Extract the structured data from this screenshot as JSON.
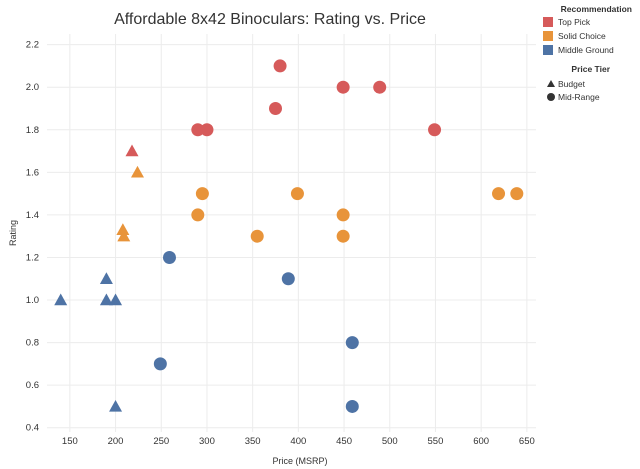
{
  "chart_data": {
    "type": "scatter",
    "title": "Affordable 8x42 Binoculars: Rating vs. Price",
    "xlabel": "Price (MSRP)",
    "ylabel": "Rating",
    "xlim": [
      125,
      660
    ],
    "ylim": [
      0.38,
      2.25
    ],
    "xticks": [
      150,
      200,
      250,
      300,
      350,
      400,
      450,
      500,
      550,
      600,
      650
    ],
    "yticks": [
      0.4,
      0.6,
      0.8,
      1.0,
      1.2,
      1.4,
      1.6,
      1.8,
      2.0,
      2.2
    ],
    "grid": true,
    "legend_color": {
      "title": "Recommendation",
      "items": [
        {
          "label": "Top Pick",
          "color": "#d65a5a"
        },
        {
          "label": "Solid Choice",
          "color": "#e8943a"
        },
        {
          "label": "Middle Ground",
          "color": "#4e73a5"
        }
      ]
    },
    "legend_shape": {
      "title": "Price Tier",
      "items": [
        {
          "label": "Budget",
          "shape": "triangle"
        },
        {
          "label": "Mid-Range",
          "shape": "circle"
        }
      ]
    },
    "points": [
      {
        "x": 218,
        "y": 1.7,
        "category": "Top Pick",
        "tier": "Budget"
      },
      {
        "x": 290,
        "y": 1.8,
        "category": "Top Pick",
        "tier": "Mid-Range"
      },
      {
        "x": 300,
        "y": 1.8,
        "category": "Top Pick",
        "tier": "Mid-Range"
      },
      {
        "x": 375,
        "y": 1.9,
        "category": "Top Pick",
        "tier": "Mid-Range"
      },
      {
        "x": 380,
        "y": 2.1,
        "category": "Top Pick",
        "tier": "Mid-Range"
      },
      {
        "x": 449,
        "y": 2.0,
        "category": "Top Pick",
        "tier": "Mid-Range"
      },
      {
        "x": 489,
        "y": 2.0,
        "category": "Top Pick",
        "tier": "Mid-Range"
      },
      {
        "x": 549,
        "y": 1.8,
        "category": "Top Pick",
        "tier": "Mid-Range"
      },
      {
        "x": 224,
        "y": 1.6,
        "category": "Solid Choice",
        "tier": "Budget"
      },
      {
        "x": 208,
        "y": 1.33,
        "category": "Solid Choice",
        "tier": "Budget"
      },
      {
        "x": 209,
        "y": 1.3,
        "category": "Solid Choice",
        "tier": "Budget"
      },
      {
        "x": 295,
        "y": 1.5,
        "category": "Solid Choice",
        "tier": "Mid-Range"
      },
      {
        "x": 290,
        "y": 1.4,
        "category": "Solid Choice",
        "tier": "Mid-Range"
      },
      {
        "x": 355,
        "y": 1.3,
        "category": "Solid Choice",
        "tier": "Mid-Range"
      },
      {
        "x": 399,
        "y": 1.5,
        "category": "Solid Choice",
        "tier": "Mid-Range"
      },
      {
        "x": 449,
        "y": 1.4,
        "category": "Solid Choice",
        "tier": "Mid-Range"
      },
      {
        "x": 449,
        "y": 1.3,
        "category": "Solid Choice",
        "tier": "Mid-Range"
      },
      {
        "x": 619,
        "y": 1.5,
        "category": "Solid Choice",
        "tier": "Mid-Range"
      },
      {
        "x": 639,
        "y": 1.5,
        "category": "Solid Choice",
        "tier": "Mid-Range"
      },
      {
        "x": 140,
        "y": 1.0,
        "category": "Middle Ground",
        "tier": "Budget"
      },
      {
        "x": 190,
        "y": 1.1,
        "category": "Middle Ground",
        "tier": "Budget"
      },
      {
        "x": 190,
        "y": 1.0,
        "category": "Middle Ground",
        "tier": "Budget"
      },
      {
        "x": 200,
        "y": 1.0,
        "category": "Middle Ground",
        "tier": "Budget"
      },
      {
        "x": 200,
        "y": 0.5,
        "category": "Middle Ground",
        "tier": "Budget"
      },
      {
        "x": 259,
        "y": 1.2,
        "category": "Middle Ground",
        "tier": "Mid-Range"
      },
      {
        "x": 249,
        "y": 0.7,
        "category": "Middle Ground",
        "tier": "Mid-Range"
      },
      {
        "x": 389,
        "y": 1.1,
        "category": "Middle Ground",
        "tier": "Mid-Range"
      },
      {
        "x": 459,
        "y": 0.8,
        "category": "Middle Ground",
        "tier": "Mid-Range"
      },
      {
        "x": 459,
        "y": 0.5,
        "category": "Middle Ground",
        "tier": "Mid-Range"
      }
    ]
  }
}
